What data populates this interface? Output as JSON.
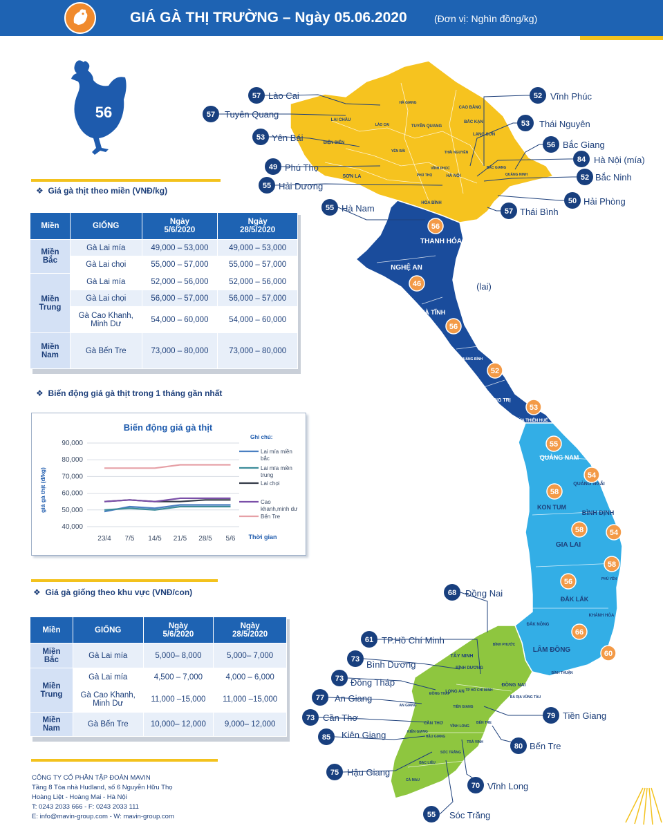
{
  "header": {
    "title": "GIÁ GÀ THỊ TRƯỜNG – Ngày 05.06.2020",
    "unit": "(Đơn vị: Nghìn đồng/kg)",
    "logo_icon": "rooster-icon"
  },
  "hen_badge": {
    "icon": "hen-icon",
    "value": "56"
  },
  "meat_price": {
    "title": "Giá gà thịt theo miền (VNĐ/kg)",
    "headers": [
      "Miền",
      "GIỐNG",
      "Ngày 5/6/2020",
      "Ngày 28/5/2020"
    ],
    "header_lines": {
      "c2a": "Ngày",
      "c2b": "5/6/2020",
      "c3a": "Ngày",
      "c3b": "28/5/2020"
    },
    "regions": {
      "north": [
        "Miền",
        "Bắc"
      ],
      "central": [
        "Miền",
        "Trung"
      ],
      "south": [
        "Miền",
        "Nam"
      ]
    },
    "rows": [
      {
        "breed": "Gà Lai mía",
        "current": "49,000 – 53,000",
        "previous": "49,000 – 53,000"
      },
      {
        "breed": "Gà Lai chọi",
        "current": "55,000 – 57,000",
        "previous": "55,000 – 57,000"
      },
      {
        "breed": "Gà Lai mía",
        "current": "52,000 – 56,000",
        "previous": "52,000 – 56,000"
      },
      {
        "breed": "Gà Lai chọi",
        "current": "56,000 – 57,000",
        "previous": "56,000 – 57,000"
      },
      {
        "breed": "Gà Cao Khanh,",
        "breed2": "Minh Dư",
        "current": "54,000 – 60,000",
        "previous": "54,000 – 60,000"
      },
      {
        "breed": "Gà Bến Tre",
        "current": "73,000 – 80,000",
        "previous": "73,000 – 80,000"
      }
    ]
  },
  "trend": {
    "title": "Biến động giá gà thịt trong 1 tháng gần nhất"
  },
  "chart_data": {
    "type": "line",
    "title": "Biến động giá gà thịt",
    "ylabel": "giá gà thịt (đ/kg)",
    "xlabel": "Thời gian",
    "legend_title": "Ghi chú:",
    "categories": [
      "23/4",
      "7/5",
      "14/5",
      "21/5",
      "28/5",
      "5/6"
    ],
    "yticks": [
      "40,000",
      "50,000",
      "60,000",
      "70,000",
      "80,000",
      "90,000"
    ],
    "ylim": [
      40000,
      90000
    ],
    "grid": true,
    "legend_position": "right",
    "series": [
      {
        "name": "Lai mía miền bắc",
        "name_lines": [
          "Lai mía miền",
          "bắc"
        ],
        "color": "#4a7fc1",
        "values": [
          49000,
          52000,
          51000,
          53000,
          53000,
          53000
        ]
      },
      {
        "name": "Lai mía miền trung",
        "name_lines": [
          "Lai mía miền",
          "trung"
        ],
        "color": "#3c8c9a",
        "values": [
          50000,
          51000,
          50000,
          52000,
          52000,
          52000
        ]
      },
      {
        "name": "Lai chọi",
        "name_lines": [
          "Lai chọi"
        ],
        "color": "#333a48",
        "values": [
          55000,
          56000,
          55000,
          55000,
          56000,
          56000
        ]
      },
      {
        "name": "Cao khanh,minh dư",
        "name_lines": [
          "Cao",
          "khanh,minh dư"
        ],
        "color": "#7b4fa8",
        "values": [
          55000,
          56000,
          55000,
          57000,
          57000,
          57000
        ]
      },
      {
        "name": "Bến Tre",
        "name_lines": [
          "Bến Tre"
        ],
        "color": "#e6a0a6",
        "values": [
          75000,
          75000,
          75000,
          77000,
          77000,
          77000
        ]
      }
    ]
  },
  "breed_price": {
    "title": "Giá gà giống theo khu vực (VNĐ/con)",
    "headers": [
      "Miền",
      "GIỐNG",
      "Ngày 5/6/2020",
      "Ngày 28/5/2020"
    ],
    "header_lines": {
      "c2a": "Ngày",
      "c2b": "5/6/2020",
      "c3a": "Ngày",
      "c3b": "28/5/2020"
    },
    "regions": {
      "north": [
        "Miền",
        "Bắc"
      ],
      "central": [
        "Miền",
        "Trung"
      ],
      "south": [
        "Miền",
        "Nam"
      ]
    },
    "rows": [
      {
        "breed": "Gà Lai mía",
        "current": "5,000– 8,000",
        "previous": "5,000– 7,000"
      },
      {
        "breed": "Gà Lai mía",
        "current": "4,500 – 7,000",
        "previous": "4,000 – 6,000"
      },
      {
        "breed": "Gà Cao Khanh,",
        "breed2": "Minh Dư",
        "current": "11,000 –15,000",
        "previous": "11,000 –15,000"
      },
      {
        "breed": "Gà Bến Tre",
        "current": "10,000– 12,000",
        "previous": "9,000– 12,000"
      }
    ]
  },
  "company": {
    "name": "CÔNG TY CỔ PHẦN TẬP ĐOÀN MAVIN",
    "address1": "Tầng 8 Tòa nhà Hudland, số 6 Nguyễn Hữu Thọ",
    "address2": "Hoàng Liệt - Hoàng Mai - Hà Nội",
    "phone": "T: 0243 2033 666 - F: 0243 2033 111",
    "contact": "E: info@mavin-group.com -  W: mavin-group.com"
  },
  "map": {
    "colors": {
      "north": "#f6c31f",
      "north_central": "#1a4c9c",
      "central": "#33aee6",
      "south": "#8ec63f",
      "callout": "#183f7e",
      "bubble": "#f39a47"
    },
    "note": "(lai)",
    "callouts": [
      {
        "value": "57",
        "name": "Lào Cai"
      },
      {
        "value": "57",
        "name": "Tuyên Quang"
      },
      {
        "value": "53",
        "name": "Yên Bái"
      },
      {
        "value": "49",
        "name": "Phú Thọ"
      },
      {
        "value": "55",
        "name": "Hải Dương"
      },
      {
        "value": "55",
        "name": "Hà Nam"
      },
      {
        "value": "52",
        "name": "Vĩnh Phúc"
      },
      {
        "value": "53",
        "name": "Thái Nguyên"
      },
      {
        "value": "56",
        "name": "Bắc Giang"
      },
      {
        "value": "84",
        "name": "Hà Nội (mía)"
      },
      {
        "value": "52",
        "name": "Bắc Ninh"
      },
      {
        "value": "50",
        "name": "Hải Phòng"
      },
      {
        "value": "57",
        "name": "Thái Bình"
      },
      {
        "value": "68",
        "name": "Đồng Nai"
      },
      {
        "value": "61",
        "name": "TP.Hồ Chí Minh"
      },
      {
        "value": "73",
        "name": "Bình Dương"
      },
      {
        "value": "73",
        "name": "Đồng Tháp"
      },
      {
        "value": "77",
        "name": "An Giang"
      },
      {
        "value": "73",
        "name": "Cần Thơ"
      },
      {
        "value": "85",
        "name": "Kiên Giang"
      },
      {
        "value": "75",
        "name": "Hậu Giang"
      },
      {
        "value": "55",
        "name": "Sóc Trăng"
      },
      {
        "value": "70",
        "name": "Vĩnh Long"
      },
      {
        "value": "80",
        "name": "Bến Tre"
      },
      {
        "value": "79",
        "name": "Tiền Giang"
      }
    ],
    "bubbles": [
      "56",
      "46",
      "56",
      "52",
      "53",
      "55",
      "54",
      "58",
      "58",
      "54",
      "58",
      "56",
      "66",
      "60"
    ],
    "province_labels": [
      "LAI CHÂU",
      "LÀO CAI",
      "HÀ GIANG",
      "CAO BẰNG",
      "TUYÊN QUANG",
      "BẮC KẠN",
      "LẠNG SƠN",
      "ĐIỆN BIÊN",
      "YÊN BÁI",
      "THÁI NGUYÊN",
      "SƠN LA",
      "PHÚ THỌ",
      "VĨNH PHÚC",
      "HÀ NỘI",
      "BẮC GIANG",
      "QUẢNG NINH",
      "HÒA BÌNH",
      "THANH HÓA",
      "NGHỆ AN",
      "HÀ TĨNH",
      "QUẢNG BÌNH",
      "QUẢNG TRỊ",
      "THỪA THIÊN HUẾ",
      "QUẢNG NAM",
      "QUẢNG NGÃI",
      "KON TUM",
      "BÌNH ĐỊNH",
      "GIA LAI",
      "PHÚ YÊN",
      "ĐẮK LẮK",
      "KHÁNH HÒA",
      "ĐẮK NÔNG",
      "LÂM ĐỒNG",
      "BÌNH THUẬN",
      "BÌNH PHƯỚC",
      "TÂY NINH",
      "BÌNH DƯƠNG",
      "ĐỒNG NAI",
      "TP HỒ CHÍ MINH",
      "BÀ RỊA VŨNG TÀU",
      "LONG AN",
      "ĐỒNG THÁP",
      "TIỀN GIANG",
      "AN GIANG",
      "CẦN THƠ",
      "VĨNH LONG",
      "BẾN TRE",
      "KIÊN GIANG",
      "HẬU GIANG",
      "TRÀ VINH",
      "SÓC TRĂNG",
      "BẠC LIÊU",
      "CÀ MAU"
    ]
  }
}
